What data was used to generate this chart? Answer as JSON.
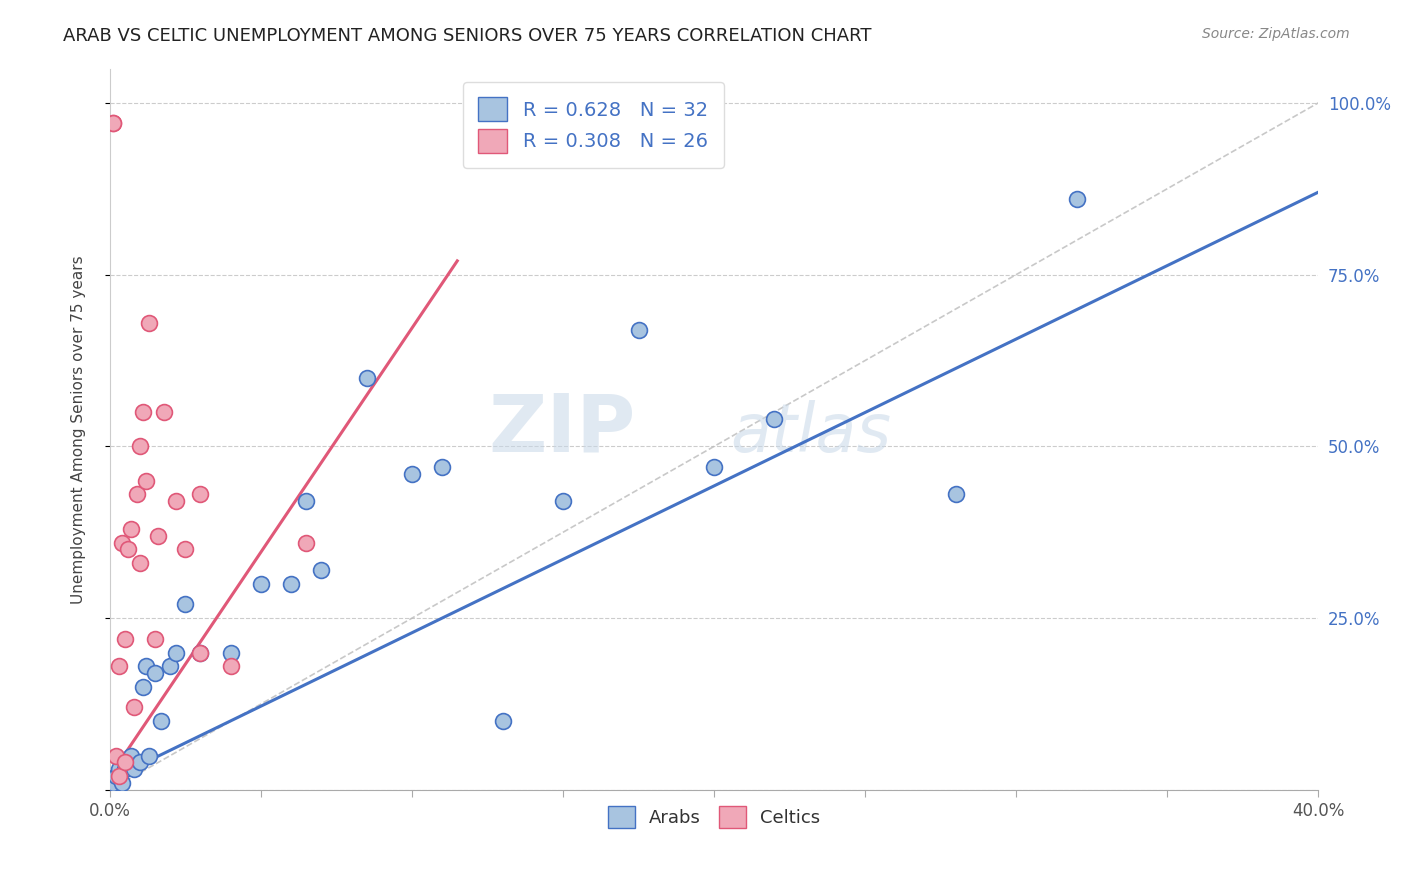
{
  "title": "ARAB VS CELTIC UNEMPLOYMENT AMONG SENIORS OVER 75 YEARS CORRELATION CHART",
  "source": "Source: ZipAtlas.com",
  "ylabel": "Unemployment Among Seniors over 75 years",
  "xlim": [
    0.0,
    0.4
  ],
  "ylim": [
    0.0,
    1.05
  ],
  "xticks": [
    0.0,
    0.05,
    0.1,
    0.15,
    0.2,
    0.25,
    0.3,
    0.35,
    0.4
  ],
  "xticklabels": [
    "0.0%",
    "",
    "",
    "",
    "",
    "",
    "",
    "",
    "40.0%"
  ],
  "yticks": [
    0.0,
    0.25,
    0.5,
    0.75,
    1.0
  ],
  "yticklabels": [
    "",
    "25.0%",
    "50.0%",
    "75.0%",
    "100.0%"
  ],
  "arab_R": 0.628,
  "arab_N": 32,
  "celtic_R": 0.308,
  "celtic_N": 26,
  "arab_color": "#a8c4e0",
  "celtic_color": "#f0a8b8",
  "arab_line_color": "#4472c4",
  "celtic_line_color": "#e05878",
  "legend_label_color": "#4472c4",
  "watermark_zip": "ZIP",
  "watermark_atlas": "atlas",
  "arab_x": [
    0.001,
    0.002,
    0.003,
    0.004,
    0.005,
    0.007,
    0.008,
    0.01,
    0.011,
    0.012,
    0.013,
    0.015,
    0.017,
    0.02,
    0.022,
    0.025,
    0.03,
    0.04,
    0.05,
    0.06,
    0.065,
    0.07,
    0.085,
    0.1,
    0.11,
    0.13,
    0.15,
    0.175,
    0.2,
    0.22,
    0.28,
    0.32
  ],
  "arab_y": [
    0.01,
    0.02,
    0.03,
    0.01,
    0.03,
    0.05,
    0.03,
    0.04,
    0.15,
    0.18,
    0.05,
    0.17,
    0.1,
    0.18,
    0.2,
    0.27,
    0.2,
    0.2,
    0.3,
    0.3,
    0.42,
    0.32,
    0.6,
    0.46,
    0.47,
    0.1,
    0.42,
    0.67,
    0.47,
    0.54,
    0.43,
    0.86
  ],
  "celtic_x": [
    0.001,
    0.001,
    0.002,
    0.003,
    0.003,
    0.004,
    0.005,
    0.005,
    0.006,
    0.007,
    0.008,
    0.009,
    0.01,
    0.01,
    0.011,
    0.012,
    0.013,
    0.015,
    0.016,
    0.018,
    0.022,
    0.025,
    0.03,
    0.03,
    0.04,
    0.065
  ],
  "celtic_y": [
    0.97,
    0.97,
    0.05,
    0.02,
    0.18,
    0.36,
    0.04,
    0.22,
    0.35,
    0.38,
    0.12,
    0.43,
    0.33,
    0.5,
    0.55,
    0.45,
    0.68,
    0.22,
    0.37,
    0.55,
    0.42,
    0.35,
    0.43,
    0.2,
    0.18,
    0.36
  ],
  "arab_line_x": [
    0.0,
    0.4
  ],
  "arab_line_y": [
    0.015,
    0.87
  ],
  "celtic_line_x": [
    0.0,
    0.115
  ],
  "celtic_line_y": [
    0.02,
    0.77
  ],
  "diag_line_x": [
    0.0,
    0.4
  ],
  "diag_line_y": [
    0.0,
    1.0
  ]
}
